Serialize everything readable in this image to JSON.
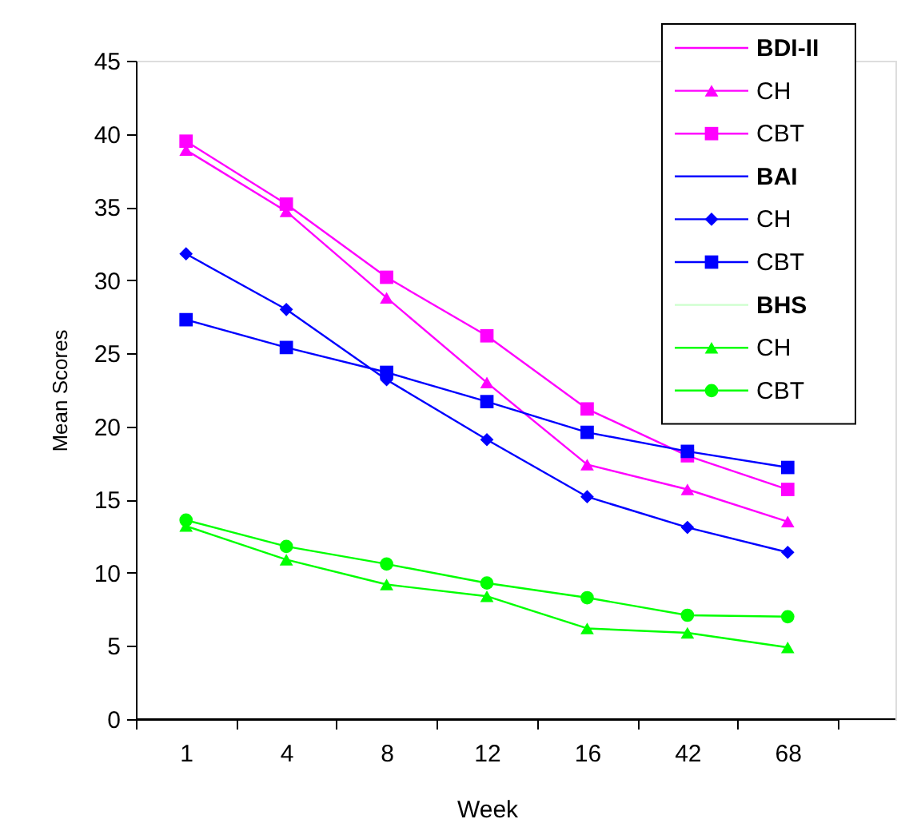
{
  "chart_data": {
    "type": "line",
    "xlabel": "Week",
    "ylabel": "Mean Scores",
    "categories": [
      "1",
      "4",
      "8",
      "12",
      "16",
      "42",
      "68"
    ],
    "ylim": [
      0,
      45
    ],
    "yticks": [
      0,
      5,
      10,
      15,
      20,
      25,
      30,
      35,
      40,
      45
    ],
    "legend": "top right",
    "grid": false,
    "line_style": "solid",
    "series": [
      {
        "name": "BDI-II",
        "color": "#ff00ff",
        "marker": "none",
        "values": [
          null,
          null,
          null,
          null,
          null,
          null,
          null
        ]
      },
      {
        "name": "CH",
        "color": "#ff00ff",
        "marker": "triangle",
        "values": [
          38.9,
          34.7,
          28.8,
          23.0,
          17.4,
          15.7,
          13.5
        ]
      },
      {
        "name": "CBT",
        "color": "#ff00ff",
        "marker": "square",
        "values": [
          39.5,
          35.2,
          30.2,
          26.2,
          21.2,
          18.0,
          15.7
        ]
      },
      {
        "name": "BAI",
        "color": "#0000ff",
        "marker": "none",
        "values": [
          null,
          null,
          null,
          null,
          null,
          null,
          null
        ]
      },
      {
        "name": "CH",
        "color": "#0000ff",
        "marker": "diamond",
        "values": [
          31.8,
          28.0,
          23.2,
          19.1,
          15.2,
          13.1,
          11.4
        ]
      },
      {
        "name": "CBT",
        "color": "#0000ff",
        "marker": "square",
        "values": [
          27.3,
          25.4,
          23.7,
          21.7,
          19.6,
          18.3,
          17.2
        ]
      },
      {
        "name": "BHS",
        "color": "#ccffcc",
        "marker": "none",
        "values": [
          null,
          null,
          null,
          null,
          null,
          null,
          null
        ]
      },
      {
        "name": "CH",
        "color": "#00ff00",
        "marker": "triangle",
        "values": [
          13.2,
          10.9,
          9.2,
          8.4,
          6.2,
          5.9,
          4.9
        ]
      },
      {
        "name": "CBT",
        "color": "#00ff00",
        "marker": "circle",
        "values": [
          13.6,
          11.8,
          10.6,
          9.3,
          8.3,
          7.1,
          7.0
        ]
      }
    ]
  }
}
